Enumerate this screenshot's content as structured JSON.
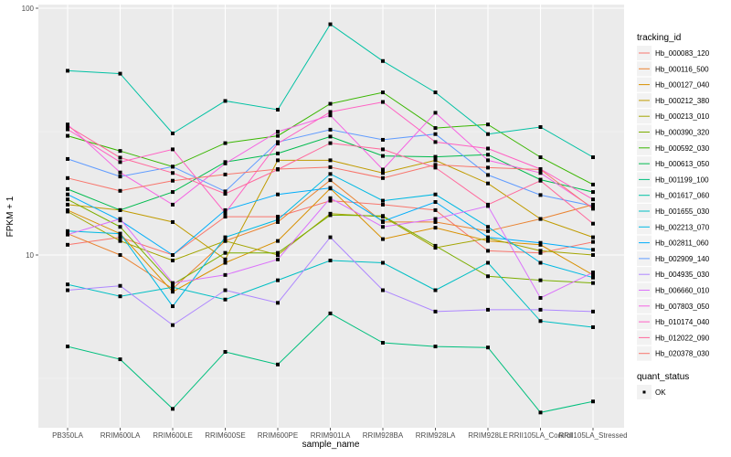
{
  "chart_data": {
    "type": "line",
    "xlabel": "sample_name",
    "ylabel": "FPKM + 1",
    "yscale": "log10",
    "ylim": [
      2.2,
      100
    ],
    "yticks": [
      10,
      100
    ],
    "ytick_labels": [
      "10",
      "100"
    ],
    "grid": true,
    "legend_position": "right",
    "categories": [
      "PB350LA",
      "RRIM600LA",
      "RRIM600LE",
      "RRIM600SE",
      "RRIM600PE",
      "RRIM901LA",
      "RRIM928BA",
      "RRIM928LA",
      "RRIM928LE",
      "RRII105LA_Control",
      "RRII105LA_Stressed"
    ],
    "legend_title": "tracking_id",
    "shape_legend_title": "quant_status",
    "shape_legend_items": [
      "OK"
    ],
    "series": [
      {
        "name": "Hb_000083_120",
        "color": "#F8766D",
        "values": [
          11.0,
          11.8,
          10.0,
          14.3,
          14.3,
          16.6,
          16.0,
          15.2,
          10.4,
          10.2,
          11.3
        ]
      },
      {
        "name": "Hb_000116_500",
        "color": "#EA8331",
        "values": [
          12.2,
          10.0,
          7.3,
          11.4,
          13.6,
          20.1,
          13.6,
          13.6,
          12.5,
          14.0,
          16.0
        ]
      },
      {
        "name": "Hb_000127_040",
        "color": "#D89000",
        "values": [
          15.2,
          12.2,
          7.1,
          9.3,
          11.4,
          18.6,
          11.6,
          12.9,
          11.4,
          11.0,
          8.3
        ]
      },
      {
        "name": "Hb_000212_380",
        "color": "#C09B00",
        "values": [
          16.0,
          15.2,
          13.6,
          9.6,
          24.2,
          24.2,
          21.5,
          24.2,
          19.5,
          14.0,
          11.8
        ]
      },
      {
        "name": "Hb_000213_010",
        "color": "#A3A500",
        "values": [
          15.0,
          11.4,
          9.5,
          11.4,
          10.0,
          14.7,
          14.3,
          10.7,
          11.7,
          10.4,
          10.0
        ]
      },
      {
        "name": "Hb_000390_320",
        "color": "#7CAE00",
        "values": [
          16.8,
          13.0,
          7.6,
          10.2,
          10.2,
          14.5,
          14.4,
          10.9,
          8.2,
          7.9,
          7.7
        ]
      },
      {
        "name": "Hb_000592_030",
        "color": "#39B600",
        "values": [
          30.4,
          26.4,
          22.8,
          28.4,
          30.4,
          41.0,
          45.6,
          32.7,
          33.8,
          24.9,
          19.3
        ]
      },
      {
        "name": "Hb_000613_050",
        "color": "#00BB4E",
        "values": [
          18.5,
          15.2,
          18.0,
          23.8,
          25.8,
          30.2,
          25.2,
          25.0,
          25.5,
          20.2,
          18.0
        ]
      },
      {
        "name": "Hb_001199_100",
        "color": "#00BF7D",
        "values": [
          4.26,
          3.78,
          2.38,
          4.05,
          3.6,
          5.8,
          4.41,
          4.26,
          4.22,
          2.3,
          2.55
        ]
      },
      {
        "name": "Hb_001617_060",
        "color": "#00C1A3",
        "values": [
          55.8,
          54.3,
          31.1,
          42.1,
          38.8,
          86.1,
          61.1,
          45.6,
          30.9,
          33.0,
          24.9
        ]
      },
      {
        "name": "Hb_001655_030",
        "color": "#00BFC4",
        "values": [
          7.6,
          6.8,
          7.4,
          6.6,
          7.9,
          9.5,
          9.3,
          7.2,
          9.3,
          5.4,
          5.1
        ]
      },
      {
        "name": "Hb_002213_070",
        "color": "#00B9E3",
        "values": [
          12.5,
          12.2,
          6.2,
          11.8,
          13.9,
          21.3,
          16.6,
          17.6,
          13.0,
          9.3,
          8.1
        ]
      },
      {
        "name": "Hb_002811_060",
        "color": "#00ADFA",
        "values": [
          17.6,
          13.8,
          10.0,
          15.2,
          17.6,
          18.7,
          13.7,
          16.4,
          11.8,
          11.2,
          10.5
        ]
      },
      {
        "name": "Hb_002909_140",
        "color": "#619CFF",
        "values": [
          24.5,
          20.8,
          22.8,
          18.1,
          28.7,
          32.2,
          29.3,
          30.9,
          21.1,
          17.5,
          15.8
        ]
      },
      {
        "name": "Hb_004935_030",
        "color": "#AE87FF",
        "values": [
          7.2,
          7.5,
          5.2,
          7.2,
          6.4,
          11.8,
          7.2,
          5.9,
          6.0,
          6.0,
          5.9
        ]
      },
      {
        "name": "Hb_006660_010",
        "color": "#DB72FB",
        "values": [
          12.1,
          14.0,
          7.7,
          8.3,
          9.6,
          17.0,
          13.0,
          14.0,
          15.8,
          6.7,
          8.5
        ]
      },
      {
        "name": "Hb_007803_050",
        "color": "#F564E3",
        "values": [
          33.8,
          21.6,
          16.0,
          23.5,
          31.6,
          36.8,
          22.2,
          37.7,
          24.2,
          21.5,
          15.5
        ]
      },
      {
        "name": "Hb_010174_040",
        "color": "#FF61C3",
        "values": [
          32.3,
          23.8,
          26.8,
          14.8,
          28.3,
          38.0,
          41.7,
          28.7,
          27.0,
          22.3,
          16.8
        ]
      },
      {
        "name": "Hb_012022_090",
        "color": "#FF699C",
        "values": [
          33.3,
          24.8,
          21.5,
          17.7,
          22.2,
          28.4,
          26.8,
          22.6,
          16.0,
          20.0,
          13.4
        ]
      },
      {
        "name": "Hb_020378_030",
        "color": "#F8766D",
        "values": [
          20.5,
          18.2,
          20.0,
          21.2,
          22.3,
          22.7,
          20.5,
          23.2,
          22.6,
          22.2,
          15.4
        ]
      }
    ]
  }
}
